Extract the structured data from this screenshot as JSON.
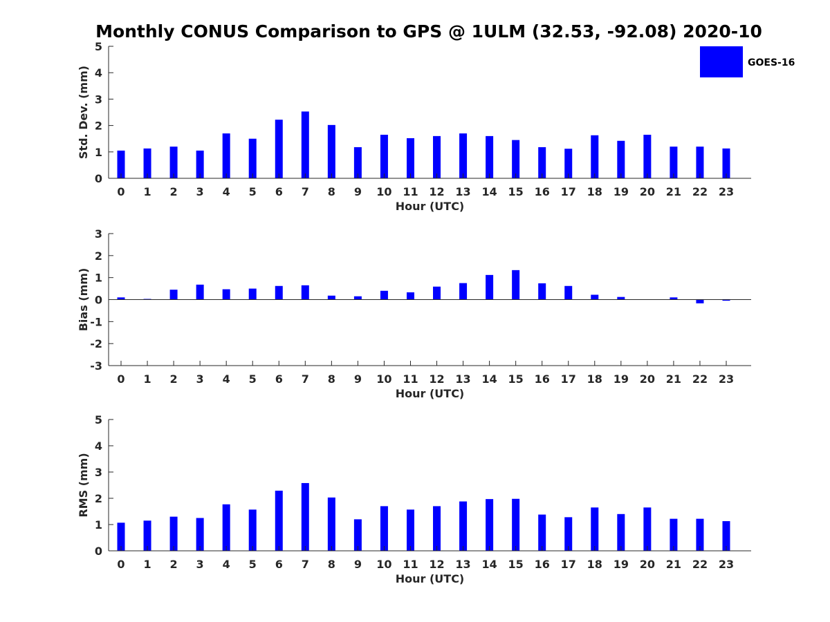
{
  "title": "Monthly CONUS Comparison to GPS @ 1ULM (32.53, -92.08) 2020-10",
  "legend": {
    "label": "GOES-16",
    "color": "#0000ff",
    "placement": "top-right"
  },
  "chart_data": [
    {
      "type": "bar",
      "name": "std-dev",
      "categories": [
        "0",
        "1",
        "2",
        "3",
        "4",
        "5",
        "6",
        "7",
        "8",
        "9",
        "10",
        "11",
        "12",
        "13",
        "14",
        "15",
        "16",
        "17",
        "18",
        "19",
        "20",
        "21",
        "22",
        "23"
      ],
      "series": [
        {
          "name": "GOES-16",
          "values": [
            1.05,
            1.13,
            1.2,
            1.05,
            1.7,
            1.5,
            2.22,
            2.53,
            2.02,
            1.18,
            1.65,
            1.52,
            1.6,
            1.7,
            1.6,
            1.45,
            1.18,
            1.12,
            1.63,
            1.42,
            1.65,
            1.2,
            1.2,
            1.13
          ]
        }
      ],
      "xlabel": "Hour (UTC)",
      "ylabel": "Std. Dev. (mm)",
      "ylim": [
        0,
        5
      ],
      "yticks": [
        "0",
        "1",
        "2",
        "3",
        "4",
        "5"
      ],
      "grid": false
    },
    {
      "type": "bar",
      "name": "bias",
      "categories": [
        "0",
        "1",
        "2",
        "3",
        "4",
        "5",
        "6",
        "7",
        "8",
        "9",
        "10",
        "11",
        "12",
        "13",
        "14",
        "15",
        "16",
        "17",
        "18",
        "19",
        "20",
        "21",
        "22",
        "23"
      ],
      "series": [
        {
          "name": "GOES-16",
          "values": [
            0.1,
            0.03,
            0.45,
            0.68,
            0.47,
            0.5,
            0.62,
            0.65,
            0.18,
            0.15,
            0.4,
            0.33,
            0.59,
            0.75,
            1.12,
            1.34,
            0.74,
            0.62,
            0.22,
            0.12,
            0.0,
            0.1,
            -0.17,
            -0.05
          ]
        }
      ],
      "xlabel": "Hour (UTC)",
      "ylabel": "Bias (mm)",
      "ylim": [
        -3,
        3
      ],
      "yticks": [
        "3",
        "2",
        "1",
        "0",
        "-1",
        "-2",
        "-3"
      ],
      "grid": false
    },
    {
      "type": "bar",
      "name": "rms",
      "categories": [
        "0",
        "1",
        "2",
        "3",
        "4",
        "5",
        "6",
        "7",
        "8",
        "9",
        "10",
        "11",
        "12",
        "13",
        "14",
        "15",
        "16",
        "17",
        "18",
        "19",
        "20",
        "21",
        "22",
        "23"
      ],
      "series": [
        {
          "name": "GOES-16",
          "values": [
            1.07,
            1.15,
            1.3,
            1.25,
            1.77,
            1.57,
            2.29,
            2.58,
            2.03,
            1.2,
            1.7,
            1.57,
            1.7,
            1.88,
            1.97,
            1.98,
            1.38,
            1.28,
            1.65,
            1.4,
            1.65,
            1.22,
            1.22,
            1.13
          ]
        }
      ],
      "xlabel": "Hour (UTC)",
      "ylabel": "RMS (mm)",
      "ylim": [
        0,
        5
      ],
      "yticks": [
        "0",
        "1",
        "2",
        "3",
        "4",
        "5"
      ],
      "grid": false
    }
  ]
}
